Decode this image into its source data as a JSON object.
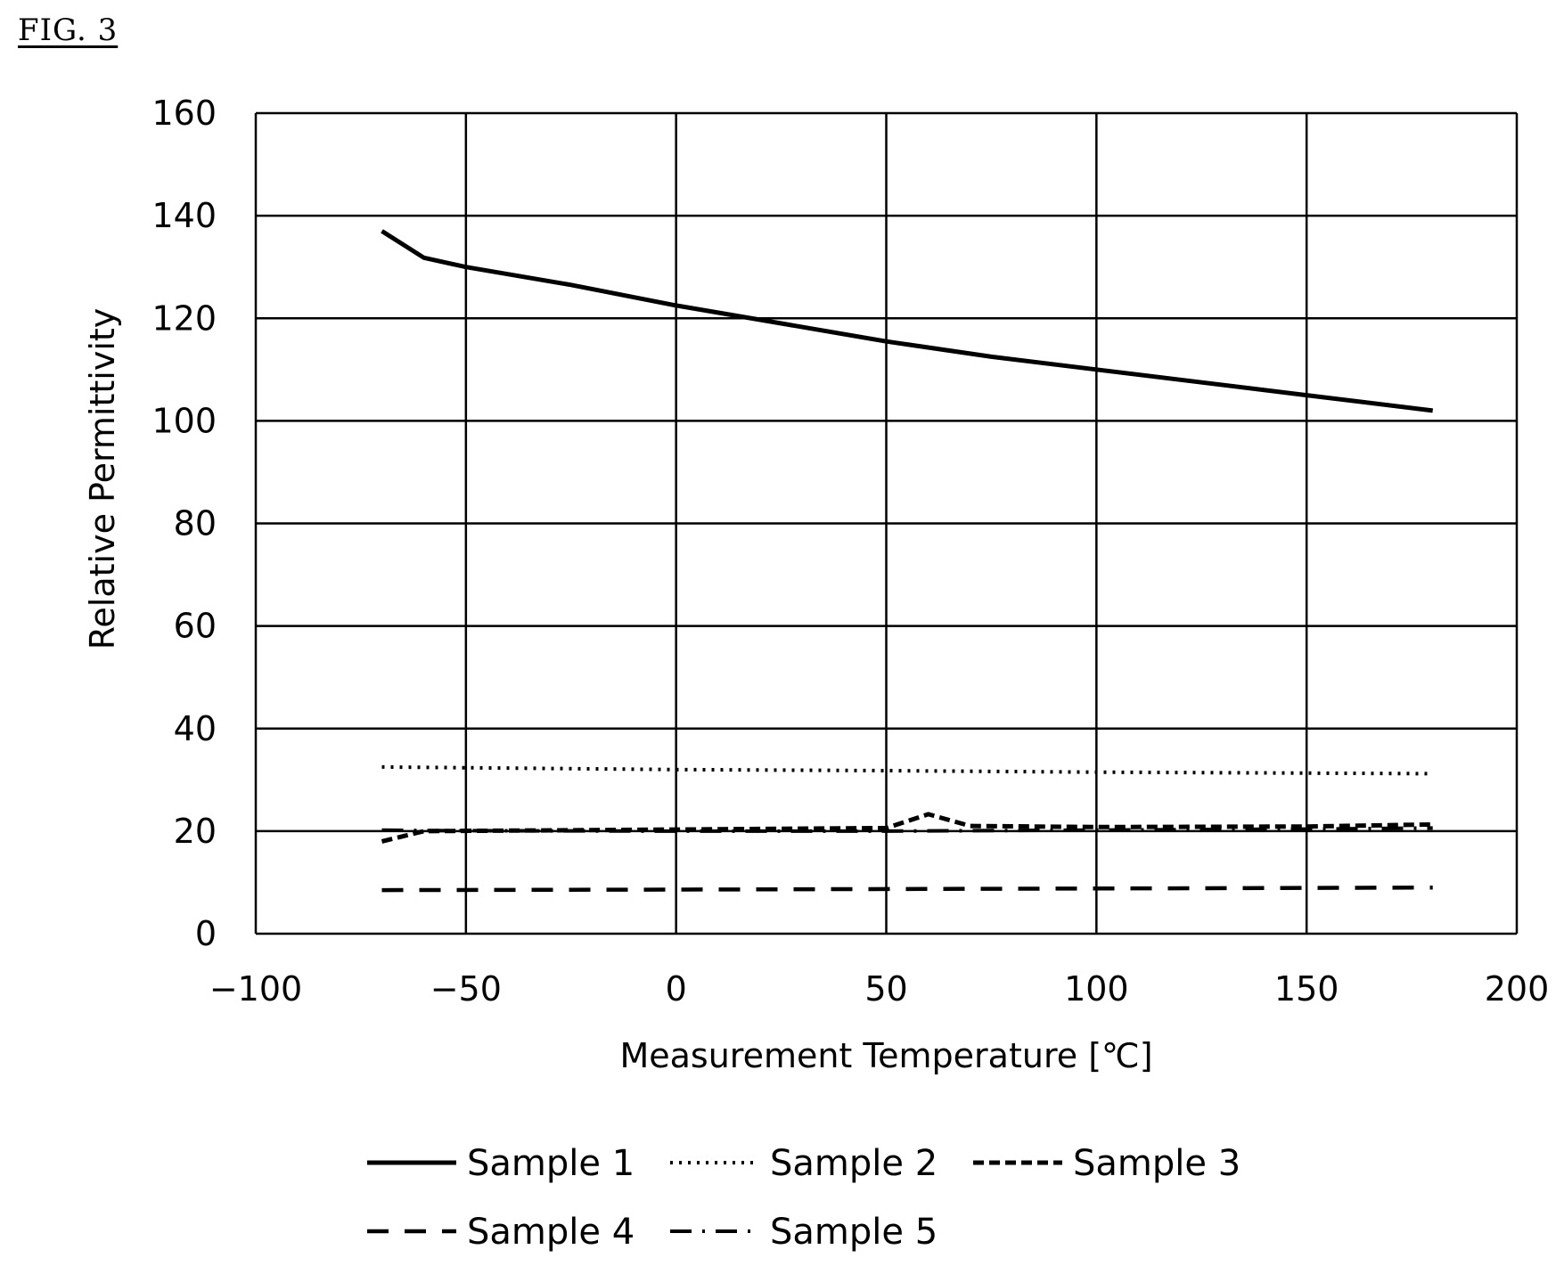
{
  "figure_label": "FIG. 3",
  "chart_data": {
    "type": "line",
    "title": "",
    "xlabel": "Measurement Temperature [℃]",
    "ylabel": "Relative Permittivity",
    "xlim": [
      -100,
      200
    ],
    "ylim": [
      0,
      160
    ],
    "xticks": [
      -100,
      -50,
      0,
      50,
      100,
      150,
      200
    ],
    "yticks": [
      0,
      20,
      40,
      60,
      80,
      100,
      120,
      140,
      160
    ],
    "grid": true,
    "legend_position": "bottom",
    "series": [
      {
        "name": "Sample 1",
        "style": "solid",
        "x": [
          -70,
          -60,
          -50,
          -25,
          0,
          25,
          50,
          75,
          100,
          125,
          150,
          180
        ],
        "y": [
          137,
          131.8,
          130,
          126.5,
          122.5,
          119,
          115.5,
          112.5,
          110,
          107.5,
          105,
          102
        ]
      },
      {
        "name": "Sample 2",
        "style": "dotted",
        "x": [
          -70,
          0,
          50,
          100,
          180
        ],
        "y": [
          32.5,
          32,
          31.8,
          31.5,
          31.2
        ]
      },
      {
        "name": "Sample 3",
        "style": "short-dash",
        "x": [
          -70,
          -60,
          0,
          50,
          60,
          70,
          100,
          150,
          180
        ],
        "y": [
          18,
          20,
          20.3,
          20.6,
          23.3,
          21,
          20.8,
          20.9,
          21.3
        ]
      },
      {
        "name": "Sample 4",
        "style": "dash",
        "x": [
          -70,
          0,
          100,
          180
        ],
        "y": [
          8.5,
          8.6,
          8.8,
          9
        ]
      },
      {
        "name": "Sample 5",
        "style": "dash-dot",
        "x": [
          -70,
          -60,
          0,
          50,
          100,
          150,
          180
        ],
        "y": [
          20.2,
          20.1,
          20,
          20,
          20.2,
          20.4,
          20.6
        ]
      }
    ]
  }
}
